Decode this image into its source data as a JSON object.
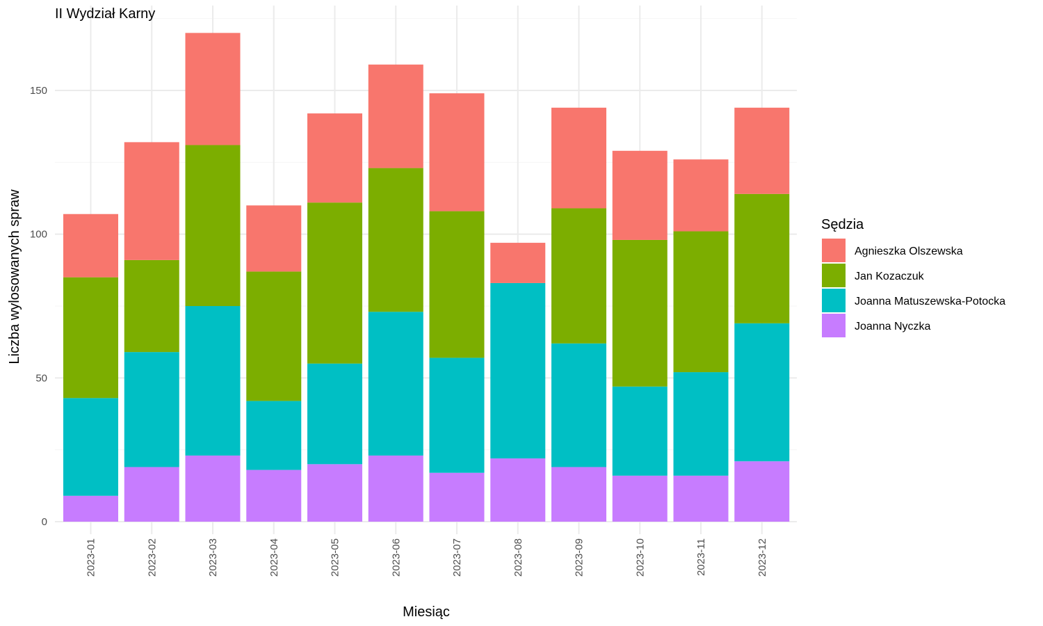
{
  "chart_data": {
    "type": "bar",
    "stacked": true,
    "title": "II Wydział Karny",
    "xlabel": "Miesiąc",
    "ylabel": "Liczba wylosowanych spraw",
    "ylim": [
      0,
      170
    ],
    "yticks": [
      0,
      50,
      100,
      150
    ],
    "grid": true,
    "legend_title": "Sędzia",
    "legend_position": "right",
    "categories": [
      "2023-01",
      "2023-02",
      "2023-03",
      "2023-04",
      "2023-05",
      "2023-06",
      "2023-07",
      "2023-08",
      "2023-09",
      "2023-10",
      "2023-11",
      "2023-12"
    ],
    "series": [
      {
        "name": "Joanna Nyczka",
        "color": "#C77CFF",
        "values": [
          9,
          19,
          23,
          18,
          20,
          23,
          17,
          22,
          19,
          16,
          16,
          21
        ]
      },
      {
        "name": "Joanna Matuszewska-Potocka",
        "color": "#00BFC4",
        "values": [
          34,
          40,
          52,
          24,
          35,
          50,
          40,
          61,
          43,
          31,
          36,
          48
        ]
      },
      {
        "name": "Jan Kozaczuk",
        "color": "#7CAE00",
        "values": [
          42,
          32,
          56,
          45,
          56,
          50,
          51,
          0,
          47,
          51,
          49,
          45
        ]
      },
      {
        "name": "Agnieszka Olszewska",
        "color": "#F8766D",
        "values": [
          22,
          41,
          39,
          23,
          31,
          36,
          41,
          14,
          35,
          31,
          25,
          30
        ]
      }
    ],
    "legend_order": [
      "Agnieszka Olszewska",
      "Jan Kozaczuk",
      "Joanna Matuszewska-Potocka",
      "Joanna Nyczka"
    ]
  }
}
